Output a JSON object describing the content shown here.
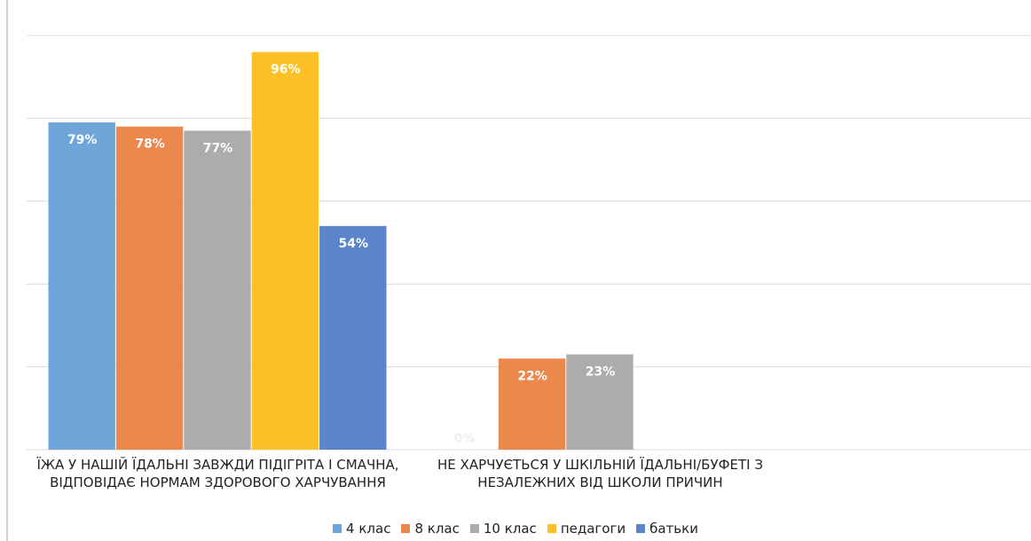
{
  "chart_data": {
    "type": "bar",
    "categories": [
      "ЇЖА У НАШІЙ ЇДАЛЬНІ ЗАВЖДИ ПІДІГРІТА І СМАЧНА, ВІДПОВІДАЄ НОРМАМ ЗДОРОВОГО ХАРЧУВАННЯ",
      "НЕ ХАРЧУЄТЬСЯ У ШКІЛЬНІЙ ЇДАЛЬНІ/БУФЕТІ З НЕЗАЛЕЖНИХ ВІД ШКОЛИ ПРИЧИН"
    ],
    "series": [
      {
        "name": "4 клас",
        "color": "#6fa5d9",
        "values": [
          79,
          0
        ],
        "value_labels": [
          "79%",
          "0%"
        ]
      },
      {
        "name": "8 клас",
        "color": "#ec884c",
        "values": [
          78,
          22
        ],
        "value_labels": [
          "78%",
          "22%"
        ]
      },
      {
        "name": "10 клас",
        "color": "#acacac",
        "values": [
          77,
          23
        ],
        "value_labels": [
          "77%",
          "23%"
        ]
      },
      {
        "name": "педагоги",
        "color": "#fdc127",
        "values": [
          96,
          null
        ],
        "value_labels": [
          "96%",
          null
        ]
      },
      {
        "name": "батьки",
        "color": "#5b84cc",
        "values": [
          54,
          null
        ],
        "value_labels": [
          "54%",
          null
        ]
      }
    ],
    "ylim": [
      0,
      100
    ],
    "yticks": [
      0,
      20,
      40,
      60,
      80,
      100
    ],
    "grid": true,
    "legend": "bottom"
  }
}
